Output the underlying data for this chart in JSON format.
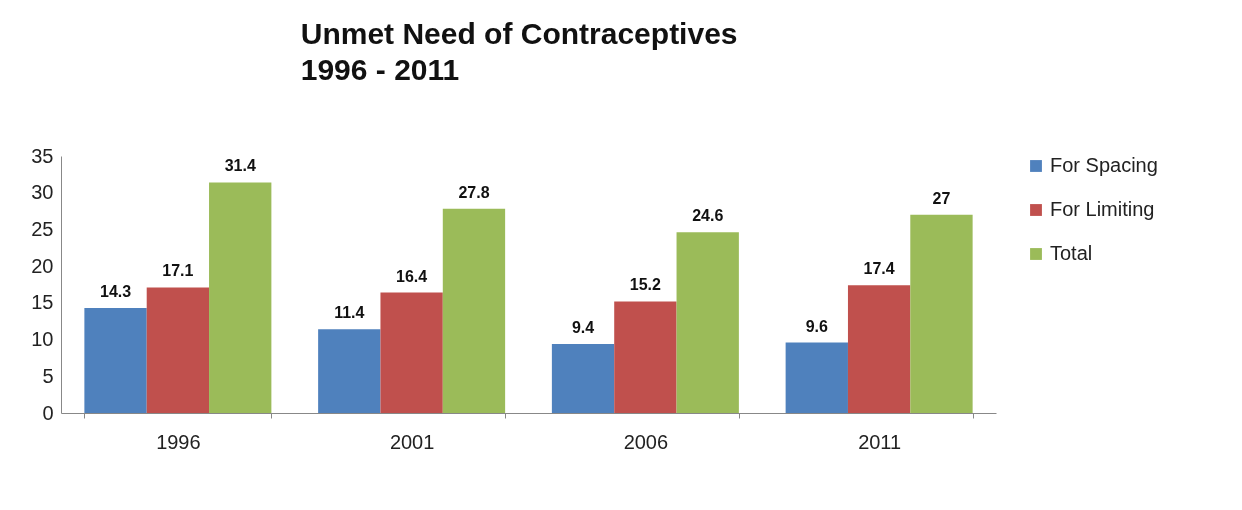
{
  "chart_data": {
    "type": "bar",
    "title": "Unmet Need of Contraceptives",
    "subtitle": "1996 - 2011",
    "categories": [
      "1996",
      "2001",
      "2006",
      "2011"
    ],
    "series": [
      {
        "name": "For Spacing",
        "color": "#4f81bd",
        "values": [
          14.3,
          11.4,
          9.4,
          9.6
        ]
      },
      {
        "name": "For Limiting",
        "color": "#c0504d",
        "values": [
          17.1,
          16.4,
          15.2,
          17.4
        ]
      },
      {
        "name": "Total",
        "color": "#9bbb59",
        "values": [
          31.4,
          27.8,
          24.6,
          27
        ]
      }
    ],
    "ylim": [
      0,
      35
    ],
    "yticks": [
      0,
      5,
      10,
      15,
      20,
      25,
      30,
      35
    ],
    "grid": false,
    "legend": "right",
    "data_labels": true
  }
}
